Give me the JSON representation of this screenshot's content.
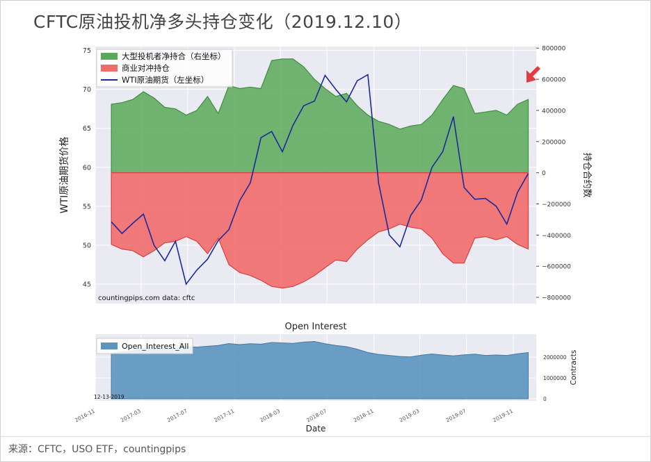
{
  "page": {
    "title": "CFTC原油投机净多头持仓变化（2019.12.10）",
    "source": "来源：CFTC，USO ETF，countingpips"
  },
  "colors": {
    "spec": "#5aa95a",
    "commercial": "#f26b6b",
    "wti": "#1b2a9a",
    "oi": "#5b95be",
    "panel_bg": "#eaeaf2",
    "arrow": "#e23c3c"
  },
  "chart_data": [
    {
      "type": "area",
      "title": "",
      "ylabel_left": "WTI原油期货价格",
      "ylabel_right": "持仓合约数",
      "ylim_left": [
        42.5,
        75.5
      ],
      "ylim_right": [
        -840000,
        810000
      ],
      "yticks_left": [
        45,
        50,
        55,
        60,
        65,
        70,
        75
      ],
      "yticks_right": [
        -800000,
        -600000,
        -400000,
        -200000,
        0,
        200000,
        400000,
        600000,
        800000
      ],
      "xlim": [
        "2016-11",
        "2019-12-31"
      ],
      "xticks": [
        "2016-11",
        "2017-03",
        "2017-07",
        "2017-11",
        "2018-03",
        "2018-07",
        "2018-11",
        "2019-03",
        "2019-07",
        "2019-11"
      ],
      "legend_position": "top-left",
      "annotation": "countingpips.com     data: cftc",
      "x": [
        "2016-12-13",
        "2017-01-10",
        "2017-02-07",
        "2017-03-07",
        "2017-04-04",
        "2017-05-02",
        "2017-05-30",
        "2017-06-27",
        "2017-07-25",
        "2017-08-22",
        "2017-09-19",
        "2017-10-17",
        "2017-11-14",
        "2017-12-12",
        "2018-01-09",
        "2018-02-06",
        "2018-03-06",
        "2018-04-03",
        "2018-05-01",
        "2018-05-29",
        "2018-06-26",
        "2018-07-24",
        "2018-08-21",
        "2018-09-18",
        "2018-10-16",
        "2018-11-13",
        "2018-12-11",
        "2019-01-08",
        "2019-02-05",
        "2019-03-05",
        "2019-04-02",
        "2019-04-30",
        "2019-05-28",
        "2019-06-25",
        "2019-07-23",
        "2019-08-20",
        "2019-09-17",
        "2019-10-15",
        "2019-11-12",
        "2019-12-10"
      ],
      "series": [
        {
          "name": "大型投机者净持合（右坐标）",
          "axis": "right",
          "values": [
            440000,
            450000,
            470000,
            520000,
            480000,
            420000,
            410000,
            370000,
            400000,
            490000,
            380000,
            560000,
            540000,
            550000,
            540000,
            720000,
            730000,
            730000,
            680000,
            600000,
            540000,
            490000,
            510000,
            430000,
            370000,
            330000,
            310000,
            280000,
            300000,
            310000,
            370000,
            470000,
            560000,
            540000,
            380000,
            390000,
            400000,
            370000,
            440000,
            470000
          ]
        },
        {
          "name": "商业对冲持仓",
          "axis": "right",
          "values": [
            -460000,
            -490000,
            -500000,
            -540000,
            -500000,
            -450000,
            -440000,
            -410000,
            -440000,
            -520000,
            -420000,
            -590000,
            -640000,
            -660000,
            -690000,
            -730000,
            -740000,
            -730000,
            -700000,
            -660000,
            -610000,
            -560000,
            -570000,
            -490000,
            -430000,
            -380000,
            -360000,
            -330000,
            -350000,
            -360000,
            -420000,
            -520000,
            -580000,
            -580000,
            -420000,
            -410000,
            -430000,
            -410000,
            -460000,
            -490000
          ]
        },
        {
          "name": "WTI原油期货（左坐标）",
          "axis": "left",
          "values": [
            53.0,
            51.5,
            52.8,
            54.0,
            50.0,
            48.0,
            50.5,
            45.0,
            46.8,
            48.2,
            50.6,
            52.0,
            55.7,
            58.0,
            63.8,
            64.6,
            62.0,
            65.4,
            67.9,
            68.5,
            71.8,
            70.0,
            68.4,
            71.1,
            71.9,
            58.0,
            51.3,
            49.8,
            53.8,
            55.8,
            60.0,
            62.0,
            66.5,
            57.4,
            55.9,
            56.0,
            55.0,
            52.7,
            56.8,
            59.2
          ]
        }
      ]
    },
    {
      "type": "area",
      "title": "Open Interest",
      "xlabel": "Date",
      "ylabel": "Contracts",
      "ylim": [
        -100000,
        3100000
      ],
      "yticks": [
        0,
        1000000,
        2000000
      ],
      "legend_position": "top-left",
      "annotation": "12-13-2019",
      "series": [
        {
          "name": "Open_Interest_All",
          "values": [
            2180000,
            2250000,
            2300000,
            2420000,
            2450000,
            2390000,
            2400000,
            2500000,
            2480000,
            2520000,
            2560000,
            2650000,
            2600000,
            2640000,
            2620000,
            2700000,
            2680000,
            2660000,
            2720000,
            2750000,
            2640000,
            2560000,
            2500000,
            2380000,
            2220000,
            2130000,
            2080000,
            2030000,
            2010000,
            2090000,
            2150000,
            2100000,
            2060000,
            2110000,
            2140000,
            2080000,
            2100000,
            2080000,
            2160000,
            2220000
          ]
        }
      ]
    }
  ]
}
